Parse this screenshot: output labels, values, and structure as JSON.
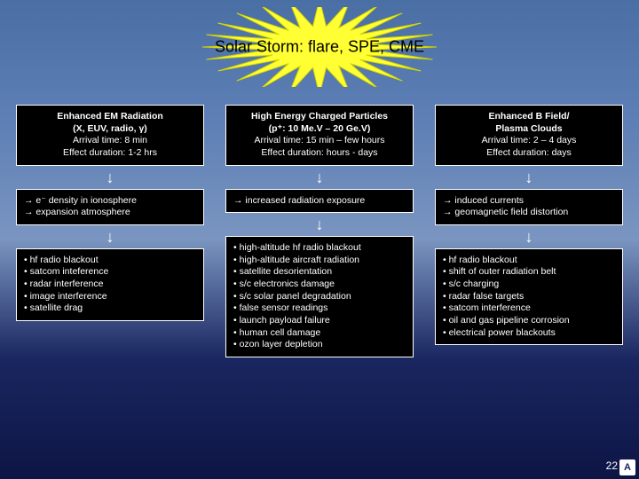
{
  "title": "Solar Storm: flare, SPE, CME",
  "page_number": "22",
  "columns": [
    {
      "header": [
        "Enhanced EM Radiation",
        "(X, EUV, radio, γ)"
      ],
      "header_sub": [
        "Arrival time: 8 min",
        "Effect duration: 1-2 hrs"
      ],
      "effects": [
        "e⁻ density in ionosphere",
        "expansion atmosphere"
      ],
      "impacts": [
        "hf radio blackout",
        "satcom inteference",
        "radar interference",
        "image interference",
        "satellite drag"
      ]
    },
    {
      "header": [
        "High Energy Charged Particles",
        "(p⁺: 10 Me.V – 20 Ge.V)"
      ],
      "header_sub": [
        "Arrival time: 15 min – few hours",
        "Effect duration: hours - days"
      ],
      "effects": [
        "increased radiation exposure"
      ],
      "impacts": [
        "high-altitude hf radio blackout",
        "high-altitude aircraft radiation",
        "satellite desorientation",
        "s/c electronics damage",
        "s/c solar panel degradation",
        "false sensor readings",
        "launch payload failure",
        "human cell damage",
        "ozon layer depletion"
      ]
    },
    {
      "header": [
        "Enhanced B Field/",
        "Plasma Clouds"
      ],
      "header_sub": [
        "Arrival time: 2 – 4 days",
        "Effect duration: days"
      ],
      "effects": [
        "induced currents",
        "geomagnetic field distortion"
      ],
      "impacts": [
        "hf radio blackout",
        "shift of outer radiation belt",
        "s/c charging",
        "radar false targets",
        "satcom interference",
        "oil and gas pipeline corrosion",
        "electrical power blackouts"
      ]
    }
  ],
  "style": {
    "starburst_fill": "#ffff33",
    "starburst_stroke": "#d4d400"
  }
}
